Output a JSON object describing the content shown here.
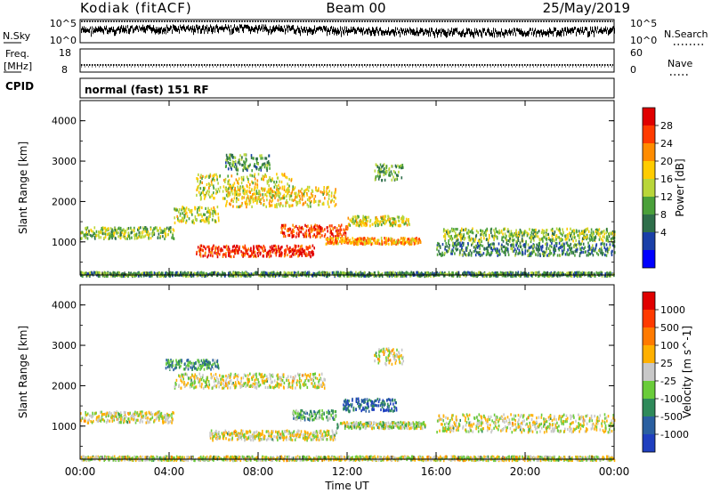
{
  "header": {
    "station": "Kodiak (fitACF)",
    "beam": "Beam 00",
    "date": "25/May/2019"
  },
  "nsky": {
    "left_label": "N.Sky",
    "right_label": "N.Search",
    "top_tick": "10^5",
    "bottom_tick": "10^0",
    "right_top_tick": "10^5",
    "right_bottom_tick": "10^0"
  },
  "freq": {
    "label_line1": "Freq.",
    "label_line2": "[MHz]",
    "top_tick": "18",
    "bottom_tick": "8",
    "right_label": "Nave",
    "right_top_tick": "60",
    "right_bottom_tick": "0"
  },
  "cpid": {
    "label": "CPID",
    "mode_text": "normal (fast) 151 RF"
  },
  "chart_data": [
    {
      "type": "heatmap",
      "panel": "power",
      "ylabel": "Slant Range [km]",
      "y_ticks": [
        "4000",
        "3000",
        "2000",
        "1000"
      ],
      "ylim": [
        180,
        4500
      ],
      "x_ticks": [
        "00:00",
        "04:00",
        "08:00",
        "12:00",
        "16:00",
        "20:00",
        "00:00"
      ],
      "colorbar": {
        "label": "Power [dB]",
        "ticks": [
          "28",
          "24",
          "20",
          "16",
          "12",
          "8",
          "4"
        ],
        "colors": [
          "#0000ff",
          "#1a3fa8",
          "#2e6e4a",
          "#4aa03a",
          "#b9d63a",
          "#ffcc00",
          "#ff8c00",
          "#ff3b00",
          "#e00000"
        ]
      },
      "scatter_regions": [
        {
          "t_start": 0.0,
          "t_end": 24.0,
          "range_km": 230,
          "spread_km": 50,
          "level": 0.35
        },
        {
          "t_start": 0.0,
          "t_end": 4.2,
          "range_km": 1250,
          "spread_km": 140,
          "level": 0.45
        },
        {
          "t_start": 4.2,
          "t_end": 6.2,
          "range_km": 1700,
          "spread_km": 200,
          "level": 0.5
        },
        {
          "t_start": 5.2,
          "t_end": 9.5,
          "range_km": 2400,
          "spread_km": 320,
          "level": 0.55
        },
        {
          "t_start": 5.2,
          "t_end": 10.5,
          "range_km": 800,
          "spread_km": 140,
          "level": 0.9
        },
        {
          "t_start": 6.5,
          "t_end": 11.5,
          "range_km": 2150,
          "spread_km": 250,
          "level": 0.6
        },
        {
          "t_start": 9.0,
          "t_end": 12.0,
          "range_km": 1300,
          "spread_km": 150,
          "level": 0.85
        },
        {
          "t_start": 11.0,
          "t_end": 15.3,
          "range_km": 1050,
          "spread_km": 80,
          "level": 0.7
        },
        {
          "t_start": 12.0,
          "t_end": 14.8,
          "range_km": 1550,
          "spread_km": 120,
          "level": 0.55
        },
        {
          "t_start": 13.2,
          "t_end": 14.5,
          "range_km": 2750,
          "spread_km": 200,
          "level": 0.4
        },
        {
          "t_start": 16.3,
          "t_end": 24.0,
          "range_km": 1200,
          "spread_km": 160,
          "level": 0.45
        },
        {
          "t_start": 16.0,
          "t_end": 24.0,
          "range_km": 850,
          "spread_km": 160,
          "level": 0.3
        },
        {
          "t_start": 6.5,
          "t_end": 8.5,
          "range_km": 3000,
          "spread_km": 200,
          "level": 0.35
        }
      ]
    },
    {
      "type": "heatmap",
      "panel": "velocity",
      "ylabel": "Slant Range [km]",
      "y_ticks": [
        "4000",
        "3000",
        "2000",
        "1000"
      ],
      "ylim": [
        180,
        4500
      ],
      "x_ticks": [
        "00:00",
        "04:00",
        "08:00",
        "12:00",
        "16:00",
        "20:00",
        "00:00"
      ],
      "xlabel": "Time UT",
      "colorbar": {
        "label": "Velocity [m s^-1]",
        "ticks": [
          "1000",
          "500",
          "100",
          "25",
          "-25",
          "-100",
          "-500",
          "-1000"
        ],
        "colors": [
          "#1f3fbf",
          "#2a5fa0",
          "#2f8a5a",
          "#6acc3a",
          "#c8c8c8",
          "#ffb000",
          "#ff7a00",
          "#ff3a00",
          "#e00000"
        ]
      },
      "scatter_regions": [
        {
          "t_start": 0.0,
          "t_end": 24.0,
          "range_km": 230,
          "spread_km": 50,
          "level": 0.5
        },
        {
          "t_start": 0.0,
          "t_end": 4.2,
          "range_km": 1250,
          "spread_km": 140,
          "level": 0.5
        },
        {
          "t_start": 3.8,
          "t_end": 6.2,
          "range_km": 2550,
          "spread_km": 120,
          "level": 0.3
        },
        {
          "t_start": 4.2,
          "t_end": 11.0,
          "range_km": 2150,
          "spread_km": 180,
          "level": 0.5
        },
        {
          "t_start": 5.8,
          "t_end": 11.5,
          "range_km": 800,
          "spread_km": 120,
          "level": 0.5
        },
        {
          "t_start": 9.5,
          "t_end": 11.5,
          "range_km": 1300,
          "spread_km": 120,
          "level": 0.35
        },
        {
          "t_start": 11.8,
          "t_end": 14.2,
          "range_km": 1550,
          "spread_km": 160,
          "level": 0.15
        },
        {
          "t_start": 11.5,
          "t_end": 15.5,
          "range_km": 1050,
          "spread_km": 80,
          "level": 0.45
        },
        {
          "t_start": 16.0,
          "t_end": 24.0,
          "range_km": 1100,
          "spread_km": 220,
          "level": 0.5
        },
        {
          "t_start": 13.2,
          "t_end": 14.5,
          "range_km": 2750,
          "spread_km": 200,
          "level": 0.5
        }
      ]
    }
  ]
}
